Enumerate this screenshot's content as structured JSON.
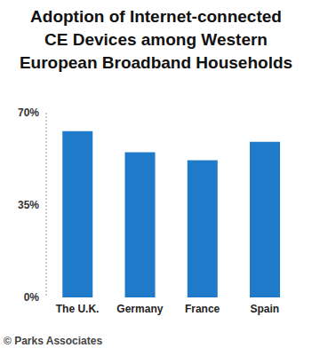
{
  "chart_data": {
    "type": "bar",
    "title": "Adoption of Internet-connected CE Devices among Western European Broadband Households",
    "categories": [
      "The U.K.",
      "Germany",
      "France",
      "Spain"
    ],
    "values": [
      63,
      55,
      52,
      59
    ],
    "color": "#1f7bc9",
    "ylim": [
      0,
      70
    ],
    "yticks": [
      {
        "value": 0,
        "label": "0%"
      },
      {
        "value": 35,
        "label": "35%"
      },
      {
        "value": 70,
        "label": "70%"
      }
    ],
    "grid": false,
    "annotations": [
      "© Parks Associates"
    ]
  }
}
